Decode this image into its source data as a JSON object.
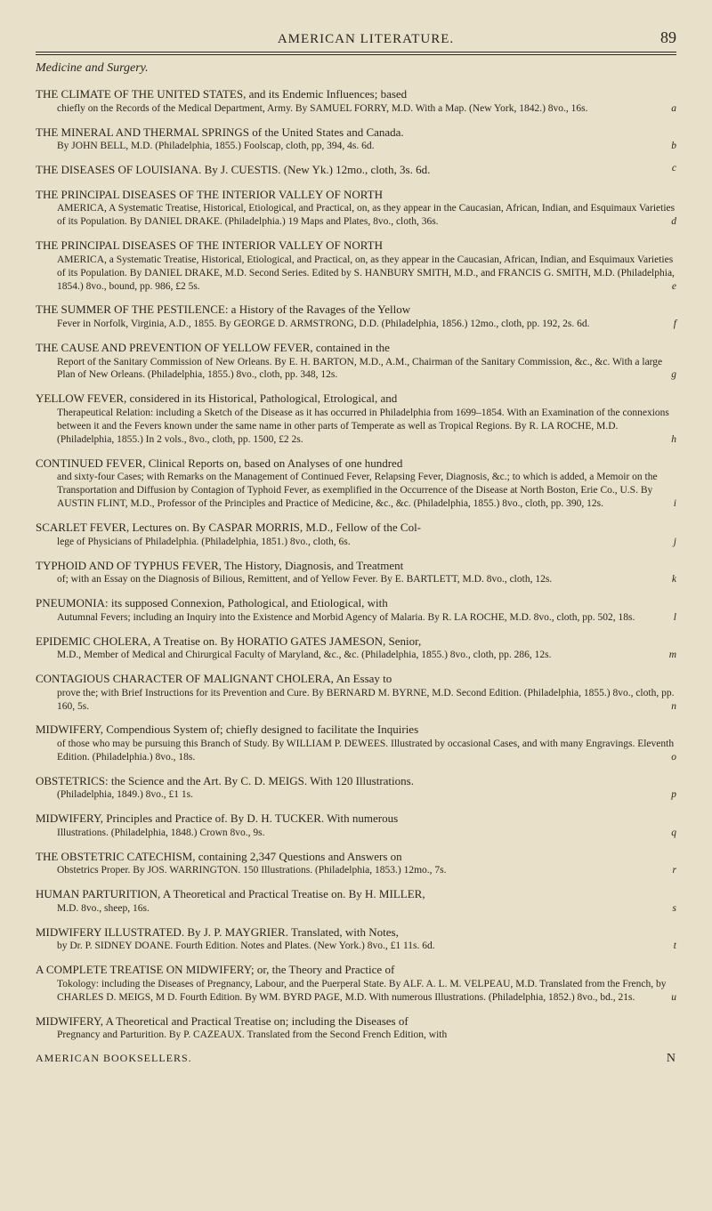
{
  "header": {
    "title": "AMERICAN LITERATURE.",
    "page": "89"
  },
  "section_heading": "Medicine and Surgery.",
  "entries": [
    {
      "title": "THE CLIMATE OF THE UNITED STATES, and its Endemic Influences; based",
      "detail": "chiefly on the Records of the Medical Department, Army. By SAMUEL FORRY, M.D. With a Map. (New York, 1842.) 8vo., 16s.",
      "ref": "a"
    },
    {
      "title": "THE MINERAL AND THERMAL SPRINGS of the United States and Canada.",
      "detail": "By JOHN BELL, M.D. (Philadelphia, 1855.) Foolscap, cloth, pp, 394, 4s. 6d.",
      "ref": "b"
    },
    {
      "title": "THE DISEASES OF LOUISIANA. By J. CUESTIS. (New Yk.) 12mo., cloth, 3s. 6d.",
      "detail": "",
      "ref": "c"
    },
    {
      "title": "THE PRINCIPAL DISEASES OF THE INTERIOR VALLEY OF NORTH",
      "detail": "AMERICA, A Systematic Treatise, Historical, Etiological, and Practical, on, as they appear in the Caucasian, African, Indian, and Esquimaux Varieties of its Population. By DANIEL DRAKE. (Philadelphia.) 19 Maps and Plates, 8vo., cloth, 36s.",
      "ref": "d"
    },
    {
      "title": "THE PRINCIPAL DISEASES OF THE INTERIOR VALLEY OF NORTH",
      "detail": "AMERICA, a Systematic Treatise, Historical, Etiological, and Practical, on, as they appear in the Caucasian, African, Indian, and Esquimaux Varieties of its Population. By DANIEL DRAKE, M.D. Second Series. Edited by S. HANBURY SMITH, M.D., and FRANCIS G. SMITH, M.D. (Philadelphia, 1854.) 8vo., bound, pp. 986, £2 5s.",
      "ref": "e"
    },
    {
      "title": "THE SUMMER OF THE PESTILENCE: a History of the Ravages of the Yellow",
      "detail": "Fever in Norfolk, Virginia, A.D., 1855. By GEORGE D. ARMSTRONG, D.D. (Philadelphia, 1856.) 12mo., cloth, pp. 192, 2s. 6d.",
      "ref": "f"
    },
    {
      "title": "THE CAUSE AND PREVENTION OF YELLOW FEVER, contained in the",
      "detail": "Report of the Sanitary Commission of New Orleans. By E. H. BARTON, M.D., A.M., Chairman of the Sanitary Commission, &c., &c. With a large Plan of New Orleans. (Philadelphia, 1855.) 8vo., cloth, pp. 348, 12s.",
      "ref": "g"
    },
    {
      "title": "YELLOW FEVER, considered in its Historical, Pathological, Etrological, and",
      "detail": "Therapeutical Relation: including a Sketch of the Disease as it has occurred in Philadelphia from 1699–1854. With an Examination of the connexions between it and the Fevers known under the same name in other parts of Temperate as well as Tropical Regions. By R. LA ROCHE, M.D. (Philadelphia, 1855.) In 2 vols., 8vo., cloth, pp. 1500, £2 2s.",
      "ref": "h"
    },
    {
      "title": "CONTINUED FEVER, Clinical Reports on, based on Analyses of one hundred",
      "detail": "and sixty-four Cases; with Remarks on the Management of Continued Fever, Relapsing Fever, Diagnosis, &c.; to which is added, a Memoir on the Transportation and Diffusion by Contagion of Typhoid Fever, as exemplified in the Occurrence of the Disease at North Boston, Erie Co., U.S. By AUSTIN FLINT, M.D., Professor of the Principles and Practice of Medicine, &c., &c. (Philadelphia, 1855.) 8vo., cloth, pp. 390, 12s.",
      "ref": "i"
    },
    {
      "title": "SCARLET FEVER, Lectures on. By CASPAR MORRIS, M.D., Fellow of the Col-",
      "detail": "lege of Physicians of Philadelphia. (Philadelphia, 1851.) 8vo., cloth, 6s.",
      "ref": "j"
    },
    {
      "title": "TYPHOID AND OF TYPHUS FEVER, The History, Diagnosis, and Treatment",
      "detail": "of; with an Essay on the Diagnosis of Bilious, Remittent, and of Yellow Fever. By E. BARTLETT, M.D. 8vo., cloth, 12s.",
      "ref": "k"
    },
    {
      "title": "PNEUMONIA: its supposed Connexion, Pathological, and Etiological, with",
      "detail": "Autumnal Fevers; including an Inquiry into the Existence and Morbid Agency of Malaria. By R. LA ROCHE, M.D. 8vo., cloth, pp. 502, 18s.",
      "ref": "l"
    },
    {
      "title": "EPIDEMIC CHOLERA, A Treatise on. By HORATIO GATES JAMESON, Senior,",
      "detail": "M.D., Member of Medical and Chirurgical Faculty of Maryland, &c., &c. (Philadelphia, 1855.) 8vo., cloth, pp. 286, 12s.",
      "ref": "m"
    },
    {
      "title": "CONTAGIOUS CHARACTER OF MALIGNANT CHOLERA, An Essay to",
      "detail": "prove the; with Brief Instructions for its Prevention and Cure. By BERNARD M. BYRNE, M.D. Second Edition. (Philadelphia, 1855.) 8vo., cloth, pp. 160, 5s.",
      "ref": "n"
    },
    {
      "title": "MIDWIFERY, Compendious System of; chiefly designed to facilitate the Inquiries",
      "detail": "of those who may be pursuing this Branch of Study. By WILLIAM P. DEWEES. Illustrated by occasional Cases, and with many Engravings. Eleventh Edition. (Philadelphia.) 8vo., 18s.",
      "ref": "o"
    },
    {
      "title": "OBSTETRICS: the Science and the Art. By C. D. MEIGS. With 120 Illustrations.",
      "detail": "(Philadelphia, 1849.) 8vo., £1 1s.",
      "ref": "p"
    },
    {
      "title": "MIDWIFERY, Principles and Practice of. By D. H. TUCKER. With numerous",
      "detail": "Illustrations. (Philadelphia, 1848.) Crown 8vo., 9s.",
      "ref": "q"
    },
    {
      "title": "THE OBSTETRIC CATECHISM, containing 2,347 Questions and Answers on",
      "detail": "Obstetrics Proper. By JOS. WARRINGTON. 150 Illustrations. (Philadelphia, 1853.) 12mo., 7s.",
      "ref": "r"
    },
    {
      "title": "HUMAN PARTURITION, A Theoretical and Practical Treatise on. By H. MILLER,",
      "detail": "M.D. 8vo., sheep, 16s.",
      "ref": "s"
    },
    {
      "title": "MIDWIFERY ILLUSTRATED. By J. P. MAYGRIER. Translated, with Notes,",
      "detail": "by Dr. P. SIDNEY DOANE. Fourth Edition. Notes and Plates. (New York.) 8vo., £1 11s. 6d.",
      "ref": "t"
    },
    {
      "title": "A COMPLETE TREATISE ON MIDWIFERY; or, the Theory and Practice of",
      "detail": "Tokology: including the Diseases of Pregnancy, Labour, and the Puerperal State. By ALF. A. L. M. VELPEAU, M.D. Translated from the French, by CHARLES D. MEIGS, M D. Fourth Edition. By WM. BYRD PAGE, M.D. With numerous Illustrations. (Philadelphia, 1852.) 8vo., bd., 21s.",
      "ref": "u"
    },
    {
      "title": "MIDWIFERY, A Theoretical and Practical Treatise on; including the Diseases of",
      "detail": "Pregnancy and Parturition. By P. CAZEAUX. Translated from the Second French Edition, with",
      "ref": ""
    }
  ],
  "footer": {
    "left": "AMERICAN BOOKSELLERS.",
    "right": "N"
  },
  "colors": {
    "background": "#e8e0c8",
    "text": "#2a2520"
  },
  "typography": {
    "body_font_size": 13,
    "detail_font_size": 11.5,
    "header_title_size": 15,
    "page_number_size": 18
  }
}
